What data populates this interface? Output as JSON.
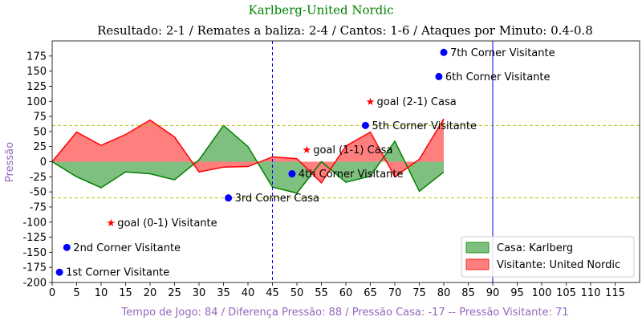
{
  "chart_data": {
    "type": "area",
    "title": "Karlberg-United Nordic",
    "subtitle": "Resultado: 2-1 / Remates a baliza: 2-4 / Cantos: 1-6 / Ataques por Minuto: 0.4-0.8",
    "xlabel": "Tempo de Jogo: 84 / Diferença Pressão: 88 / Pressão Casa: -17 -- Pressão Visitante: 71",
    "ylabel": "Pressão",
    "xlim": [
      0,
      120
    ],
    "ylim": [
      -200,
      200
    ],
    "xticks": [
      0,
      5,
      10,
      15,
      20,
      25,
      30,
      35,
      40,
      45,
      50,
      55,
      60,
      65,
      70,
      75,
      80,
      85,
      90,
      95,
      100,
      105,
      110,
      115
    ],
    "yticks": [
      -200,
      -175,
      -150,
      -125,
      -100,
      -75,
      -50,
      -25,
      0,
      25,
      50,
      75,
      100,
      125,
      150,
      175
    ],
    "x": [
      0,
      5,
      10,
      15,
      20,
      25,
      30,
      35,
      40,
      45,
      50,
      55,
      60,
      65,
      70,
      75,
      80
    ],
    "series": [
      {
        "name": "Casa: Karlberg",
        "color": "#008000",
        "fill": "#7fbf7f",
        "values": [
          0,
          -25,
          -43,
          -17,
          -20,
          -30,
          3,
          60,
          25,
          -42,
          -52,
          0,
          -34,
          -24,
          34,
          -49,
          -17
        ]
      },
      {
        "name": "Visitante: United Nordic",
        "color": "#ff0000",
        "fill": "#ff7f7f",
        "values": [
          0,
          49,
          27,
          45,
          69,
          41,
          -17,
          -9,
          -8,
          8,
          5,
          -35,
          26,
          49,
          -25,
          4,
          71
        ]
      }
    ],
    "hlines": [
      {
        "y": 60,
        "color": "#bfbf00",
        "style": "dashed"
      },
      {
        "y": -60,
        "color": "#bfbf00",
        "style": "dashed"
      }
    ],
    "vlines": [
      {
        "x": 45,
        "color": "#0000ff",
        "style": "dashed"
      },
      {
        "x": 90,
        "color": "#0000ff",
        "style": "solid"
      }
    ],
    "annotations": [
      {
        "x": 1.5,
        "y": -183,
        "label": "1st Corner Visitante",
        "marker": "circle",
        "color": "#0000ff"
      },
      {
        "x": 3,
        "y": -142,
        "label": "2nd Corner Visitante",
        "marker": "circle",
        "color": "#0000ff"
      },
      {
        "x": 12,
        "y": -101,
        "label": "goal (0-1) Visitante",
        "marker": "star",
        "color": "#ff0000"
      },
      {
        "x": 36,
        "y": -60,
        "label": "3rd Corner Casa",
        "marker": "circle",
        "color": "#0000ff"
      },
      {
        "x": 49,
        "y": -20,
        "label": "4th Corner Visitante",
        "marker": "circle",
        "color": "#0000ff"
      },
      {
        "x": 52,
        "y": 20,
        "label": "goal (1-1) Casa",
        "marker": "star",
        "color": "#ff0000"
      },
      {
        "x": 64,
        "y": 60,
        "label": "5th Corner Visitante",
        "marker": "circle",
        "color": "#0000ff"
      },
      {
        "x": 65,
        "y": 100,
        "label": "goal (2-1) Casa",
        "marker": "star",
        "color": "#ff0000"
      },
      {
        "x": 79,
        "y": 141,
        "label": "6th Corner Visitante",
        "marker": "circle",
        "color": "#0000ff"
      },
      {
        "x": 80,
        "y": 181,
        "label": "7th Corner Visitante",
        "marker": "circle",
        "color": "#0000ff"
      }
    ],
    "title_color": "#008000",
    "xlabel_color": "#9467bd",
    "ylabel_color": "#9467bd",
    "grid": false,
    "legend": "bottom-right"
  }
}
